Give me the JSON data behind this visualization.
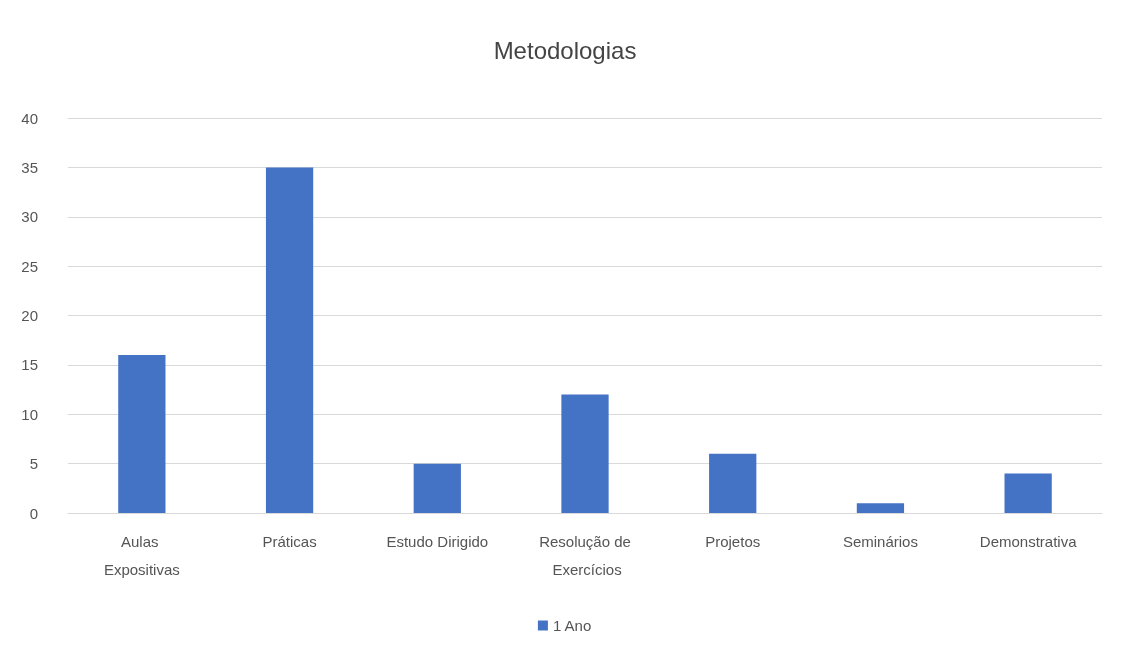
{
  "chart_data": {
    "type": "bar",
    "title": "Metodologias",
    "categories": [
      "Aulas Expositivas",
      "Práticas",
      "Estudo Dirigido",
      "Resolução de Exercícios",
      "Projetos",
      "Seminários",
      "Demonstrativa"
    ],
    "series": [
      {
        "name": "1 Ano",
        "color": "#4472c4",
        "values": [
          16,
          35,
          5,
          12,
          6,
          1,
          4
        ]
      }
    ],
    "ylim": [
      0,
      40
    ],
    "yticks": [
      0,
      5,
      10,
      15,
      20,
      25,
      30,
      35,
      40
    ],
    "grid": "y",
    "legend": "bottom"
  }
}
